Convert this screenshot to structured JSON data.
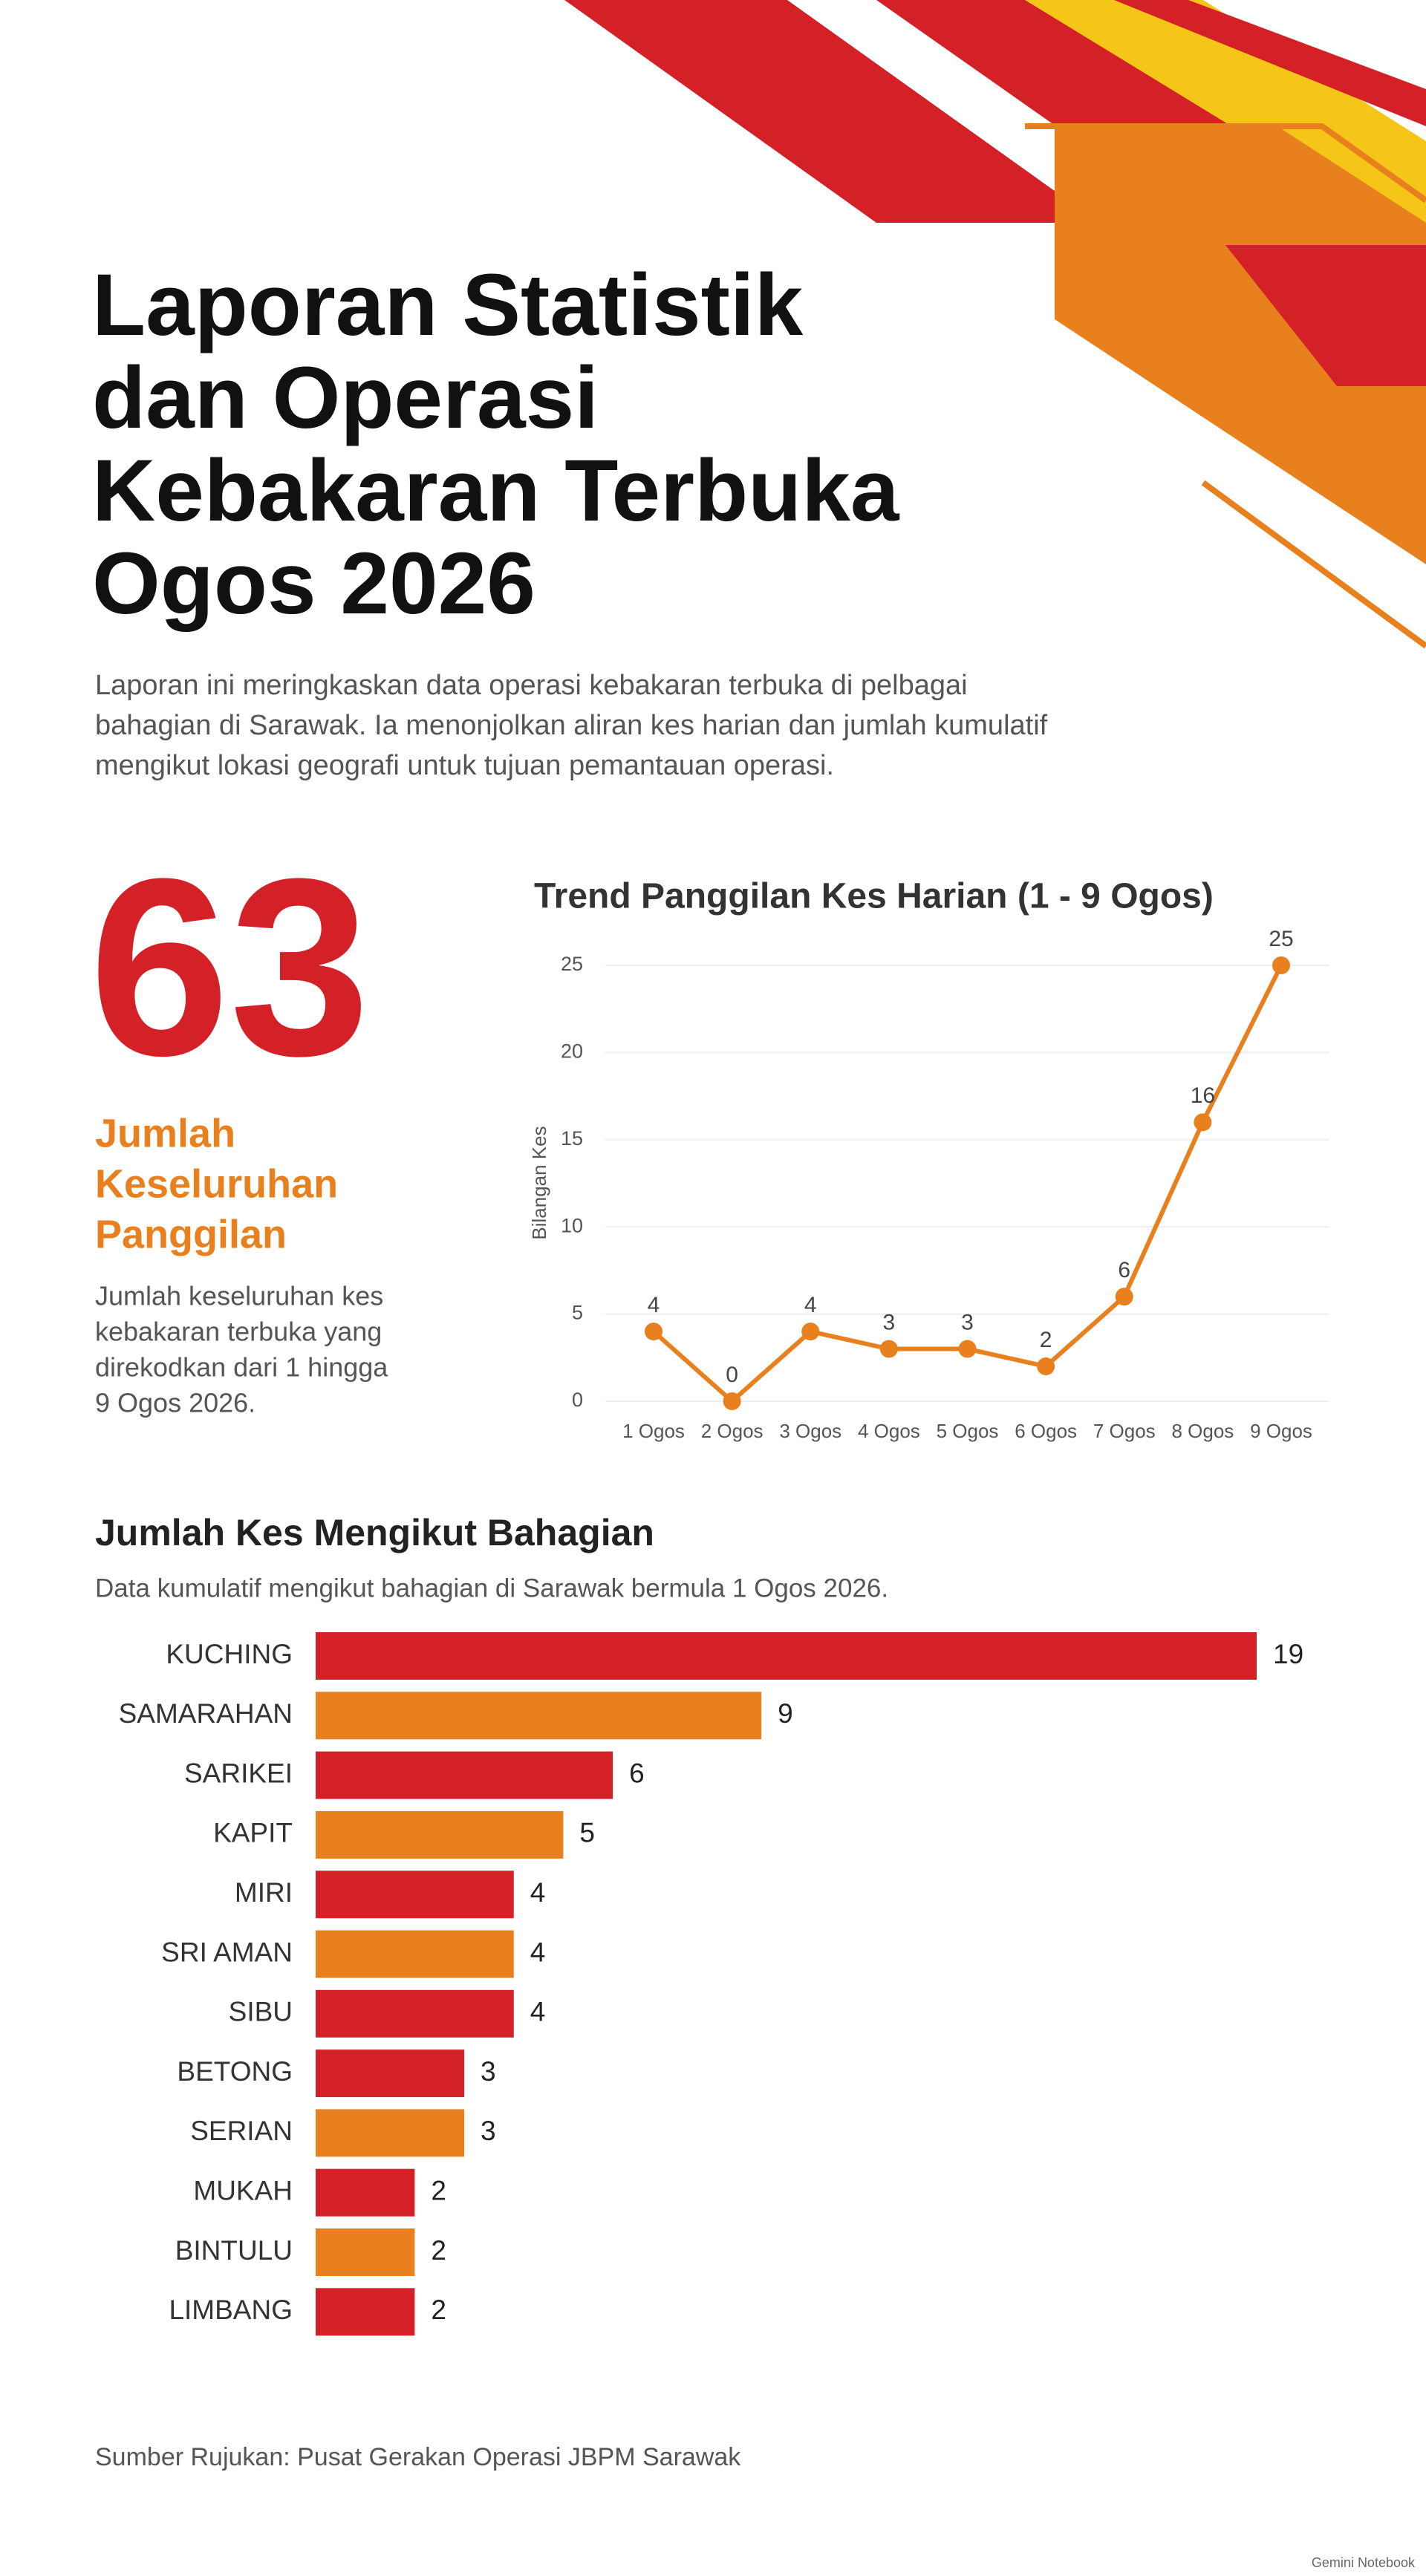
{
  "header": {
    "title_lines": [
      "Laporan Statistik",
      "dan Operasi",
      "Kebakaran Terbuka",
      "Ogos 2026"
    ],
    "intro_lines": [
      "Laporan ini meringkaskan data operasi kebakaran terbuka di pelbagai",
      "bahagian di Sarawak. Ia menonjolkan aliran kes harian dan jumlah kumulatif",
      "mengikut lokasi geografi untuk tujuan pemantauan operasi."
    ]
  },
  "stat": {
    "value": "63",
    "label_lines": [
      "Jumlah",
      "Keseluruhan",
      "Panggilan"
    ],
    "description_lines": [
      "Jumlah keseluruhan kes",
      "kebakaran terbuka yang",
      "direkodkan dari 1 hingga",
      "9 Ogos 2026."
    ]
  },
  "chart_data": [
    {
      "type": "line",
      "title": "Trend Panggilan Kes Harian (1 - 9 Ogos)",
      "y_label": "Bilangan Kes",
      "categories": [
        "1 Ogos",
        "2 Ogos",
        "3 Ogos",
        "4 Ogos",
        "5 Ogos",
        "6 Ogos",
        "7 Ogos",
        "8 Ogos",
        "9 Ogos"
      ],
      "values": [
        4,
        0,
        4,
        3,
        3,
        2,
        6,
        16,
        25
      ],
      "color": "#e8801e",
      "ylim": [
        0,
        25
      ],
      "yticks": [
        0,
        5,
        10,
        15,
        20,
        25
      ],
      "grid": true
    },
    {
      "type": "barh",
      "title": "Jumlah Kes Mengikut Bahagian",
      "subtitle": "Data kumulatif mengikut bahagian di Sarawak bermula 1 Ogos 2026.",
      "categories": [
        "KUCHING",
        "SAMARAHAN",
        "SARIKEI",
        "KAPIT",
        "MIRI",
        "SRI AMAN",
        "SIBU",
        "BETONG",
        "SERIAN",
        "MUKAH",
        "BINTULU",
        "LIMBANG"
      ],
      "values": [
        19,
        9,
        6,
        5,
        4,
        4,
        4,
        3,
        3,
        2,
        2,
        2
      ],
      "colors": [
        "#d42027",
        "#e8801e",
        "#d42027",
        "#e8801e",
        "#d42027",
        "#e8801e",
        "#d42027",
        "#d42027",
        "#e8801e",
        "#d42027",
        "#e8801e",
        "#d42027"
      ]
    }
  ],
  "source": "Sumber Rujukan: Pusat Gerakan Operasi JBPM Sarawak",
  "watermark": "Gemini Notebook"
}
